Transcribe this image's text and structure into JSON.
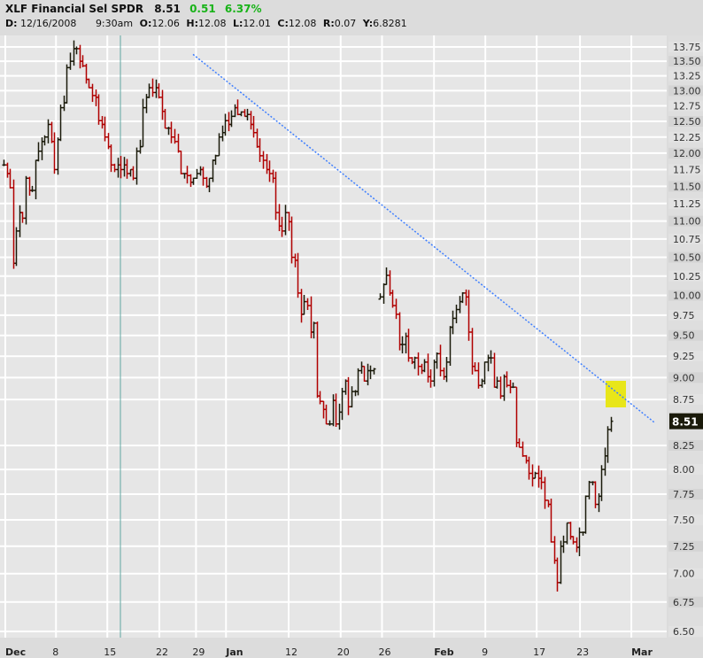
{
  "header": {
    "symbol_name": "XLF Financial Sel SPDR",
    "last": "8.51",
    "change": "0.51",
    "change_pct": "6.37%",
    "date_label": "D:",
    "date": "12/16/2008",
    "time": "9:30am",
    "open_label": "O:",
    "open": "12.06",
    "high_label": "H:",
    "high": "12.08",
    "low_label": "L:",
    "low": "12.01",
    "close_label": "C:",
    "close": "12.08",
    "range_label": "R:",
    "range": "0.07",
    "y_label": "Y:",
    "y": "6.8281"
  },
  "colors": {
    "up": "#1a1a0a",
    "down": "#b00000",
    "trend": "#3f7fff",
    "highlight": "#e8e619",
    "cursor": "#5fa5a0"
  },
  "chart_data": {
    "type": "ohlc",
    "scale": "log",
    "ylim": [
      6.5,
      13.75
    ],
    "y_ticks": [
      "13.75",
      "13.50",
      "13.25",
      "13.00",
      "12.75",
      "12.50",
      "12.25",
      "12.00",
      "11.75",
      "11.50",
      "11.25",
      "11.00",
      "10.75",
      "10.50",
      "10.25",
      "10.00",
      "9.75",
      "9.50",
      "9.25",
      "9.00",
      "8.75",
      "8.25",
      "8.00",
      "7.75",
      "7.50",
      "7.25",
      "7.00",
      "6.75",
      "6.50"
    ],
    "last_price_label": "8.51",
    "x_ticks": [
      {
        "label": "Dec",
        "bold": true,
        "pos": 0.004
      },
      {
        "label": "8",
        "pos": 0.08
      },
      {
        "label": "15",
        "pos": 0.157
      },
      {
        "label": "22",
        "pos": 0.235
      },
      {
        "label": "29",
        "pos": 0.29
      },
      {
        "label": "Jan",
        "bold": true,
        "pos": 0.335
      },
      {
        "label": "12",
        "pos": 0.429
      },
      {
        "label": "20",
        "pos": 0.507
      },
      {
        "label": "26",
        "pos": 0.569
      },
      {
        "label": "Feb",
        "bold": true,
        "pos": 0.647
      },
      {
        "label": "9",
        "pos": 0.724
      },
      {
        "label": "17",
        "pos": 0.801
      },
      {
        "label": "23",
        "pos": 0.866
      },
      {
        "label": "Mar",
        "bold": true,
        "pos": 0.943
      }
    ],
    "closes": [
      11.82,
      11.69,
      11.48,
      10.42,
      10.86,
      11.12,
      11.04,
      11.62,
      11.44,
      11.44,
      11.89,
      12.03,
      12.18,
      12.25,
      12.45,
      12.18,
      11.75,
      12.21,
      12.72,
      12.8,
      13.39,
      13.5,
      13.72,
      13.72,
      13.5,
      13.42,
      13.19,
      13.05,
      12.92,
      12.89,
      12.51,
      12.45,
      12.25,
      12.1,
      11.82,
      11.75,
      11.82,
      11.75,
      11.82,
      11.69,
      11.75,
      11.62,
      12.03,
      12.1,
      12.72,
      12.89,
      13.05,
      12.97,
      13.05,
      12.89,
      12.66,
      12.39,
      12.39,
      12.25,
      12.18,
      12.03,
      11.69,
      11.69,
      11.66,
      11.56,
      11.62,
      11.69,
      11.75,
      11.62,
      11.5,
      11.62,
      11.89,
      11.96,
      12.25,
      12.32,
      12.51,
      12.45,
      12.58,
      12.72,
      12.61,
      12.65,
      12.58,
      12.61,
      12.45,
      12.32,
      12.1,
      11.96,
      11.89,
      11.75,
      11.69,
      11.62,
      11.12,
      10.93,
      10.86,
      11.12,
      10.99,
      10.5,
      10.46,
      10.03,
      9.76,
      9.92,
      9.87,
      9.54,
      9.65,
      8.79,
      8.73,
      8.64,
      8.48,
      8.48,
      8.74,
      8.48,
      8.61,
      8.84,
      8.96,
      8.67,
      8.84,
      8.84,
      9.08,
      9.13,
      8.96,
      9.08,
      9.08,
      9.1,
      null,
      9.98,
      10.14,
      10.26,
      10.03,
      9.87,
      9.76,
      9.39,
      9.39,
      9.49,
      9.23,
      9.18,
      9.23,
      9.13,
      9.08,
      9.18,
      9.01,
      8.96,
      9.18,
      9.28,
      9.08,
      9.01,
      9.18,
      9.6,
      9.71,
      9.82,
      9.92,
      10.03,
      9.98,
      9.54,
      9.13,
      9.08,
      8.91,
      8.96,
      9.18,
      9.23,
      9.23,
      8.89,
      8.96,
      8.79,
      9.01,
      8.91,
      8.89,
      8.89,
      8.28,
      8.23,
      8.14,
      8.09,
      7.96,
      7.91,
      7.96,
      7.91,
      7.87,
      7.69,
      7.65,
      7.29,
      7.12,
      6.92,
      7.25,
      7.29,
      7.47,
      7.34,
      7.29,
      7.24,
      7.38,
      7.38,
      7.73,
      7.87,
      7.87,
      7.65,
      7.73,
      8.0,
      8.14,
      8.42,
      8.51
    ],
    "trendline": {
      "start_price": 13.62,
      "end_price": 8.49
    },
    "cursor_date": "12/16/2008"
  }
}
